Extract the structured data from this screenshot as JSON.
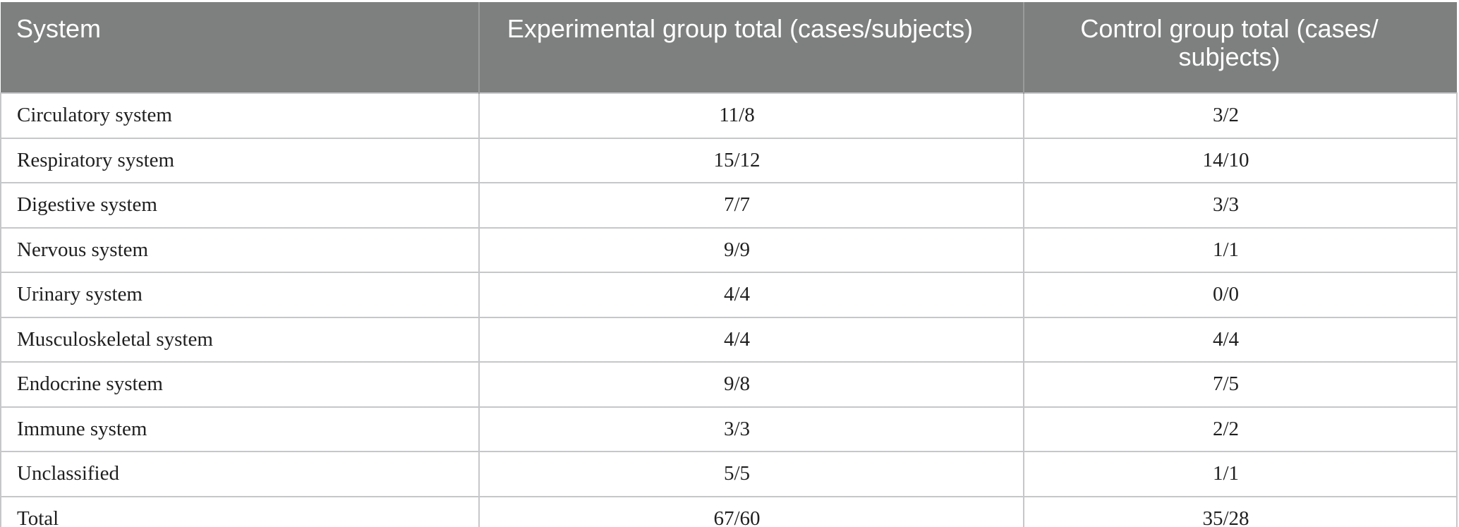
{
  "table": {
    "columns": [
      {
        "label": "System"
      },
      {
        "label": "Experimental group total (cases/subjects)"
      },
      {
        "label": "Control group total (cases/subjects)",
        "lines": [
          "Control group total (cases/",
          "subjects)"
        ]
      }
    ],
    "rows": [
      {
        "system": "Circulatory system",
        "experimental": "11/8",
        "control": "3/2"
      },
      {
        "system": "Respiratory system",
        "experimental": "15/12",
        "control": "14/10"
      },
      {
        "system": "Digestive system",
        "experimental": "7/7",
        "control": "3/3"
      },
      {
        "system": "Nervous system",
        "experimental": "9/9",
        "control": "1/1"
      },
      {
        "system": "Urinary system",
        "experimental": "4/4",
        "control": "0/0"
      },
      {
        "system": "Musculoskeletal system",
        "experimental": "4/4",
        "control": "4/4"
      },
      {
        "system": "Endocrine system",
        "experimental": "9/8",
        "control": "7/5"
      },
      {
        "system": "Immune system",
        "experimental": "3/3",
        "control": "2/2"
      },
      {
        "system": "Unclassified",
        "experimental": "5/5",
        "control": "1/1"
      },
      {
        "system": "Total",
        "experimental": "67/60",
        "control": "35/28"
      }
    ]
  },
  "colors": {
    "header_bg": "#7e8080",
    "header_text": "#ffffff",
    "body_text": "#1f1f1f",
    "row_divider": "#c6c7c9",
    "header_divider": "#9a9c9c",
    "bottom_border": "#aeaeb0",
    "page_bg": "#ffffff"
  }
}
